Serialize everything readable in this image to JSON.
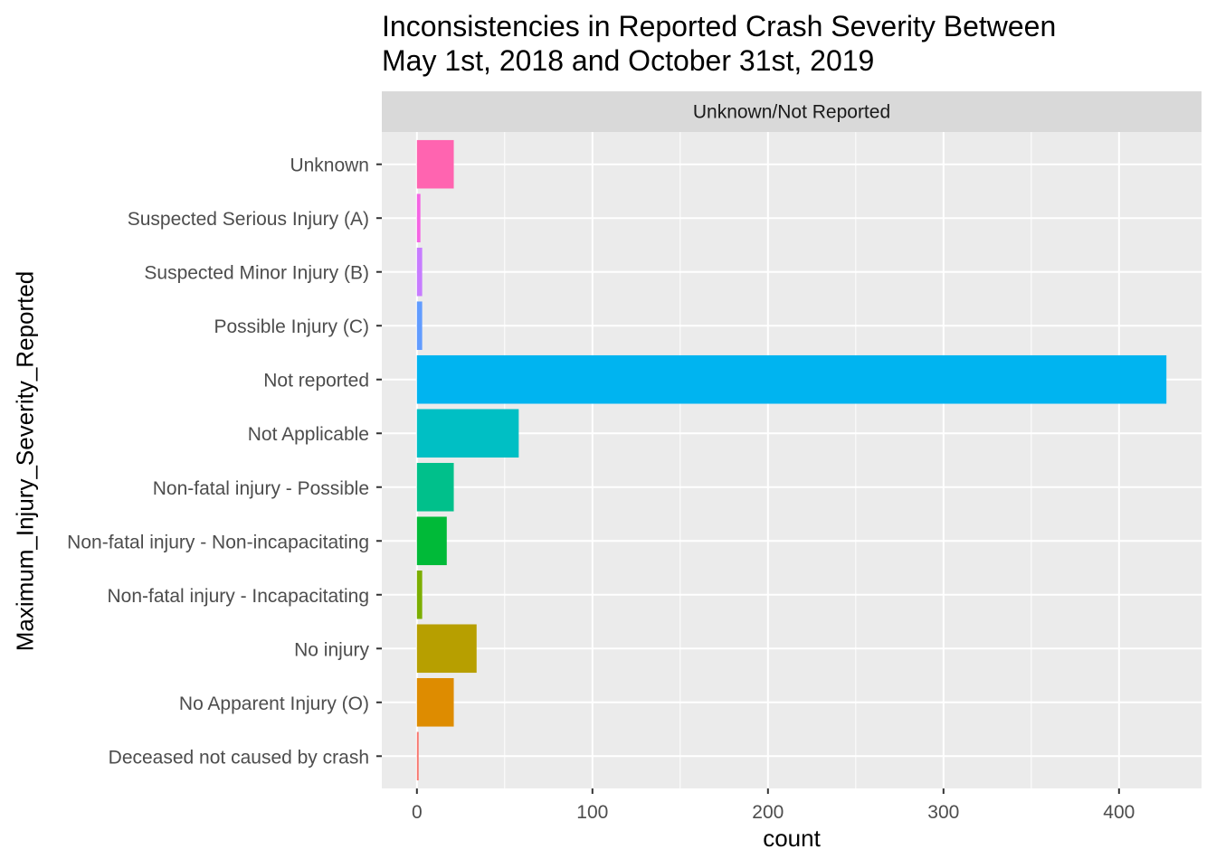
{
  "chart_data": {
    "type": "bar",
    "orientation": "horizontal",
    "title": [
      "Inconsistencies in Reported Crash Severity Between",
      "May 1st, 2018 and October 31st, 2019"
    ],
    "facet_label": "Unknown/Not Reported",
    "xlabel": "count",
    "ylabel": "Maximum_Injury_Severity_Reported",
    "xlim": [
      -20,
      447
    ],
    "x_ticks": [
      0,
      100,
      200,
      300,
      400
    ],
    "grid": true,
    "categories": [
      "Deceased not caused by crash",
      "No Apparent Injury (O)",
      "No injury",
      "Non-fatal injury - Incapacitating",
      "Non-fatal injury - Non-incapacitating",
      "Non-fatal injury - Possible",
      "Not Applicable",
      "Not reported",
      "Possible Injury (C)",
      "Suspected Minor Injury (B)",
      "Suspected Serious Injury (A)",
      "Unknown"
    ],
    "values": [
      1,
      21,
      34,
      3,
      17,
      21,
      58,
      427,
      3,
      3,
      2,
      21
    ],
    "colors": [
      "#F8766D",
      "#DE8C00",
      "#B79F00",
      "#7CAE00",
      "#00BA38",
      "#00C08B",
      "#00BFC4",
      "#00B4F0",
      "#619CFF",
      "#C77CFF",
      "#F564E3",
      "#FF64B0"
    ]
  }
}
